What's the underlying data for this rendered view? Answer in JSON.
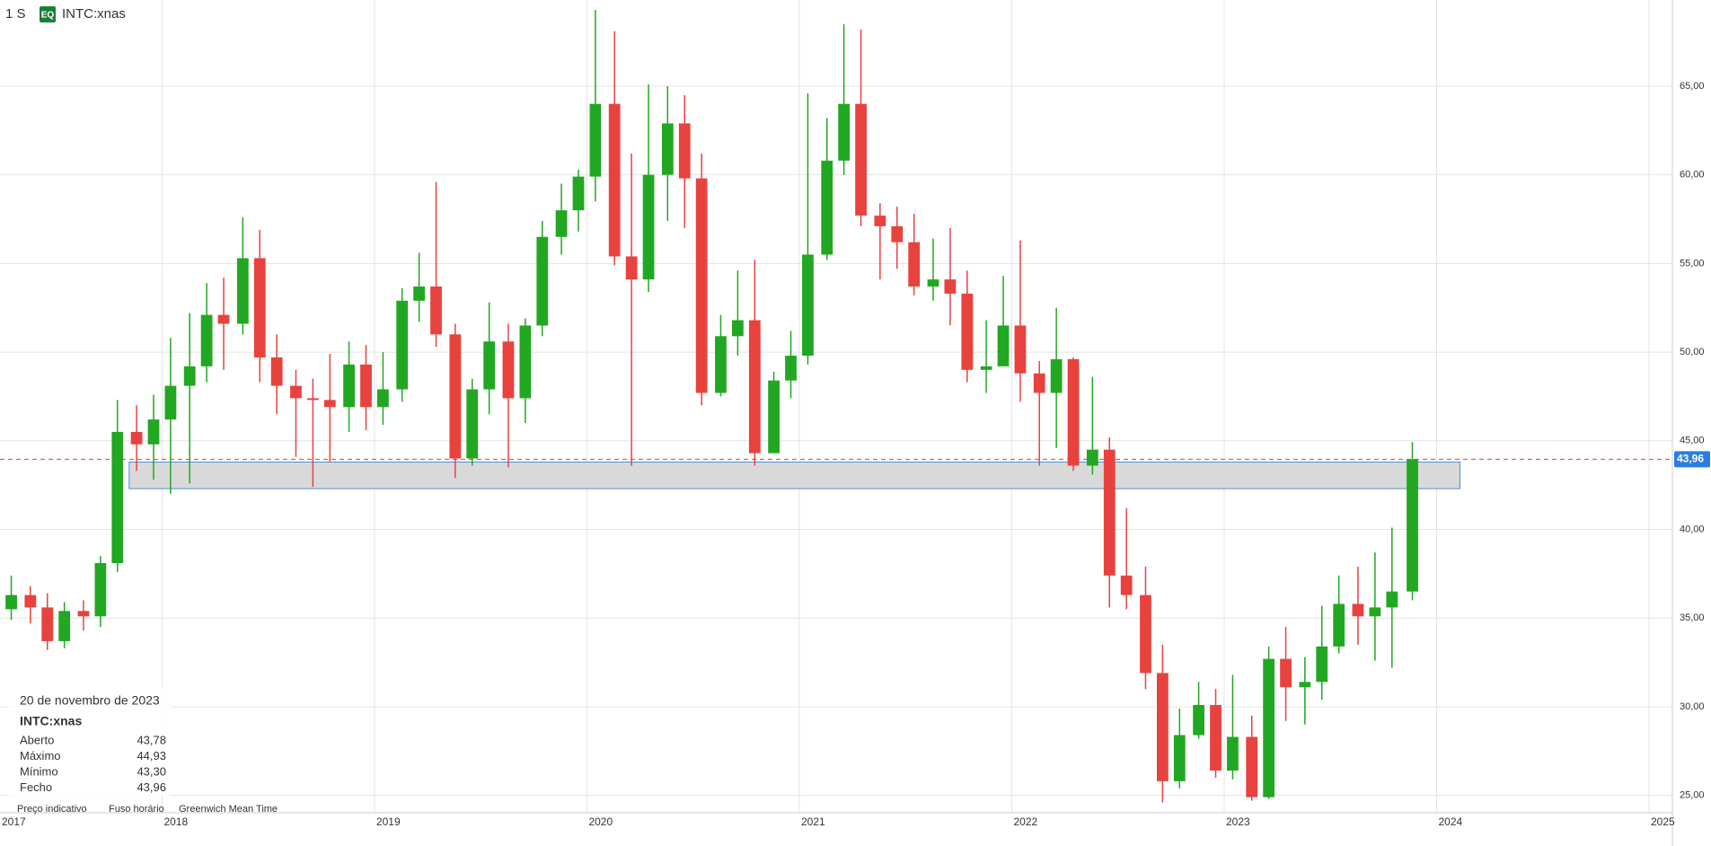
{
  "chart_data": {
    "type": "candlestick",
    "interval": "1 S",
    "badge": "EQ",
    "symbol": "INTC:xnas",
    "up_color": "#22a722",
    "down_color": "#e8423f",
    "grid": true,
    "xlim": [
      2017.237,
      2025.11
    ],
    "xticks": [
      2017,
      2018,
      2019,
      2020,
      2021,
      2022,
      2023,
      2024,
      2025
    ],
    "ylim": [
      24.02,
      69.86
    ],
    "yticks": [
      {
        "value": 25,
        "label": "25,00"
      },
      {
        "value": 30,
        "label": "30,00"
      },
      {
        "value": 35,
        "label": "35,00"
      },
      {
        "value": 40,
        "label": "40,00"
      },
      {
        "value": 45,
        "label": "45,00"
      },
      {
        "value": 50,
        "label": "50,00"
      },
      {
        "value": 55,
        "label": "55,00"
      },
      {
        "value": 60,
        "label": "60,00"
      },
      {
        "value": 65,
        "label": "65,00"
      }
    ],
    "x": [
      2017.29,
      2017.38,
      2017.46,
      2017.54,
      2017.63,
      2017.71,
      2017.79,
      2017.88,
      2017.96,
      2018.04,
      2018.13,
      2018.21,
      2018.29,
      2018.38,
      2018.46,
      2018.54,
      2018.63,
      2018.71,
      2018.79,
      2018.88,
      2018.96,
      2019.04,
      2019.13,
      2019.21,
      2019.29,
      2019.38,
      2019.46,
      2019.54,
      2019.63,
      2019.71,
      2019.79,
      2019.88,
      2019.96,
      2020.04,
      2020.13,
      2020.21,
      2020.29,
      2020.38,
      2020.46,
      2020.54,
      2020.63,
      2020.71,
      2020.79,
      2020.88,
      2020.96,
      2021.04,
      2021.13,
      2021.21,
      2021.29,
      2021.38,
      2021.46,
      2021.54,
      2021.63,
      2021.71,
      2021.79,
      2021.88,
      2021.96,
      2022.04,
      2022.13,
      2022.21,
      2022.29,
      2022.38,
      2022.46,
      2022.54,
      2022.63,
      2022.71,
      2022.79,
      2022.88,
      2022.96,
      2023.04,
      2023.13,
      2023.21,
      2023.29,
      2023.38,
      2023.46,
      2023.54,
      2023.63,
      2023.71,
      2023.79,
      2023.886
    ],
    "series": {
      "open": [
        35.5,
        36.3,
        35.6,
        33.7,
        35.4,
        35.1,
        38.1,
        45.5,
        44.8,
        46.2,
        48.1,
        49.2,
        52.1,
        51.6,
        55.3,
        49.7,
        48.1,
        47.4,
        47.3,
        46.9,
        49.3,
        46.9,
        47.9,
        52.9,
        53.7,
        51.0,
        44.0,
        47.9,
        50.6,
        47.4,
        51.5,
        56.5,
        58.0,
        59.9,
        64.0,
        55.4,
        54.1,
        60.0,
        62.9,
        59.8,
        47.7,
        50.9,
        51.8,
        44.3,
        48.4,
        49.8,
        55.5,
        60.8,
        64.0,
        57.7,
        57.1,
        56.2,
        53.7,
        54.1,
        53.3,
        49.0,
        49.2,
        51.5,
        48.8,
        47.7,
        49.6,
        43.6,
        44.5,
        37.4,
        36.3,
        31.9,
        25.8,
        28.4,
        30.1,
        26.4,
        28.3,
        24.9,
        32.7,
        31.1,
        31.4,
        33.4,
        35.8,
        35.1,
        35.6,
        36.5
      ],
      "high": [
        37.4,
        36.8,
        36.4,
        35.9,
        36.0,
        38.5,
        47.3,
        47.0,
        47.6,
        50.8,
        52.2,
        53.9,
        54.2,
        57.6,
        56.9,
        51.0,
        49.0,
        48.5,
        49.9,
        50.6,
        50.4,
        50.0,
        53.6,
        55.6,
        59.6,
        51.6,
        48.5,
        52.8,
        51.6,
        51.9,
        57.4,
        59.5,
        60.3,
        69.3,
        68.1,
        61.2,
        65.1,
        65.0,
        64.5,
        61.2,
        52.1,
        54.6,
        55.2,
        48.9,
        51.2,
        64.6,
        63.2,
        68.5,
        68.2,
        58.4,
        58.2,
        57.8,
        56.4,
        57.0,
        54.6,
        51.8,
        54.3,
        56.3,
        49.5,
        52.5,
        49.7,
        48.6,
        45.2,
        41.2,
        37.9,
        33.5,
        29.9,
        31.4,
        31.0,
        31.8,
        29.5,
        33.4,
        34.5,
        32.8,
        35.7,
        37.4,
        37.9,
        38.7,
        40.1,
        44.93
      ],
      "low": [
        34.9,
        34.7,
        33.2,
        33.3,
        34.3,
        34.5,
        37.6,
        43.3,
        42.8,
        42.0,
        42.6,
        48.3,
        49.0,
        51.0,
        48.3,
        46.5,
        44.1,
        42.4,
        43.8,
        45.5,
        45.6,
        45.9,
        47.2,
        51.7,
        50.3,
        42.9,
        43.6,
        46.5,
        43.5,
        46.0,
        50.9,
        55.5,
        56.8,
        58.5,
        54.9,
        43.6,
        53.4,
        57.4,
        57.0,
        47.0,
        47.5,
        49.8,
        43.6,
        44.3,
        47.4,
        49.3,
        55.2,
        60.0,
        57.1,
        54.1,
        54.7,
        53.2,
        52.9,
        51.5,
        48.3,
        47.7,
        49.6,
        47.2,
        43.6,
        44.6,
        43.3,
        43.1,
        35.6,
        35.5,
        31.0,
        24.6,
        25.4,
        28.2,
        26.0,
        25.9,
        24.7,
        24.8,
        29.2,
        29.0,
        30.4,
        33.0,
        33.5,
        32.6,
        32.2,
        36.0
      ],
      "close": [
        36.3,
        35.6,
        33.7,
        35.4,
        35.1,
        38.1,
        45.5,
        44.8,
        46.2,
        48.1,
        49.2,
        52.1,
        51.6,
        55.3,
        49.7,
        48.1,
        47.4,
        47.3,
        46.9,
        49.3,
        46.9,
        47.9,
        52.9,
        53.7,
        51.0,
        44.0,
        47.9,
        50.6,
        47.4,
        51.5,
        56.5,
        58.0,
        59.9,
        64.0,
        55.4,
        54.1,
        60.0,
        62.9,
        59.8,
        47.7,
        50.9,
        51.8,
        44.3,
        48.4,
        49.8,
        55.5,
        60.8,
        64.0,
        57.7,
        57.1,
        56.2,
        53.7,
        54.1,
        53.3,
        49.0,
        49.2,
        51.5,
        48.8,
        47.7,
        49.6,
        43.6,
        44.5,
        37.4,
        36.3,
        31.9,
        25.8,
        28.4,
        30.1,
        26.4,
        28.3,
        24.9,
        32.7,
        31.1,
        31.4,
        33.4,
        35.8,
        35.1,
        35.6,
        36.5,
        43.96
      ]
    },
    "last_price": {
      "value": 43.96,
      "label": "43,96"
    },
    "zone": {
      "x": [
        2017.845,
        2024.11
      ],
      "y": [
        42.3,
        43.8
      ]
    },
    "info": {
      "date": "20 de novembro de 2023",
      "symbol": "INTC:xnas",
      "rows": [
        [
          "Aberto",
          "43,78"
        ],
        [
          "Máximo",
          "44,93"
        ],
        [
          "Mínimo",
          "43,30"
        ],
        [
          "Fecho",
          "43,96"
        ]
      ]
    },
    "footer": {
      "note": "Preço indicativo",
      "tz_label": "Fuso horário",
      "tz": "Greenwich Mean Time"
    }
  }
}
